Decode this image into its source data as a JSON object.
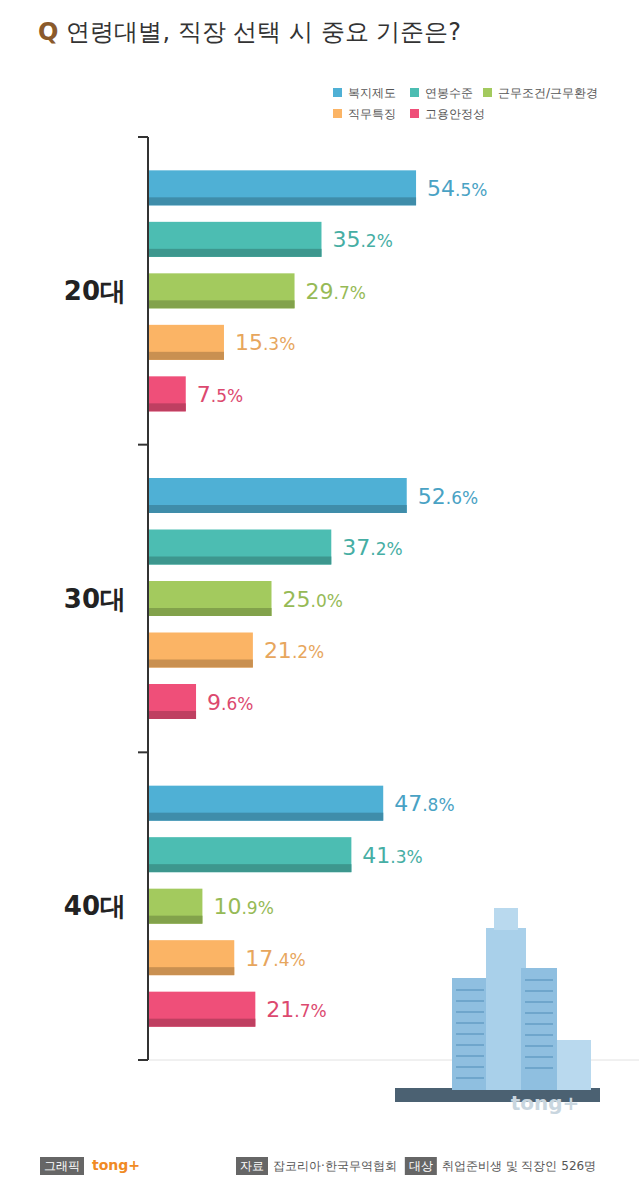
{
  "chart_data": {
    "type": "bar",
    "orientation": "horizontal",
    "title": "Q 연령대별, 직장 선택 시 중요 기준은?",
    "categories": [
      "20대",
      "30대",
      "40대"
    ],
    "series": [
      {
        "name": "복지제도",
        "color": "#4fb0d5",
        "values": [
          54.5,
          52.6,
          47.8
        ],
        "value_labels": [
          "54.5%",
          "52.6%",
          "47.8%"
        ]
      },
      {
        "name": "연봉수준",
        "color": "#4cbdb2",
        "values": [
          35.2,
          37.2,
          41.3
        ],
        "value_labels": [
          "35.2%",
          "37.2%",
          "41.3%"
        ]
      },
      {
        "name": "근무조건/근무환경",
        "color": "#a3ca5e",
        "values": [
          29.7,
          25.0,
          10.9
        ],
        "value_labels": [
          "29.7%",
          "25.0%",
          "10.9%"
        ]
      },
      {
        "name": "직무특징",
        "color": "#fbb465",
        "values": [
          15.3,
          21.2,
          17.4
        ],
        "value_labels": [
          "15.3%",
          "21.2%",
          "17.4%"
        ]
      },
      {
        "name": "고용안정성",
        "color": "#ef4f79",
        "values": [
          7.5,
          9.6,
          21.7
        ],
        "value_labels": [
          "7.5%",
          "9.6%",
          "21.7%"
        ]
      }
    ],
    "xlim": [
      0,
      100
    ],
    "tick_labels": "y",
    "data_labels": true,
    "legend": "top-right",
    "grid": false,
    "annotations": [
      "그래픽",
      "tong+",
      "자료",
      "잡코리아·한국무역협회",
      "대상",
      "취업준비생 및 직장인 526명"
    ]
  }
}
